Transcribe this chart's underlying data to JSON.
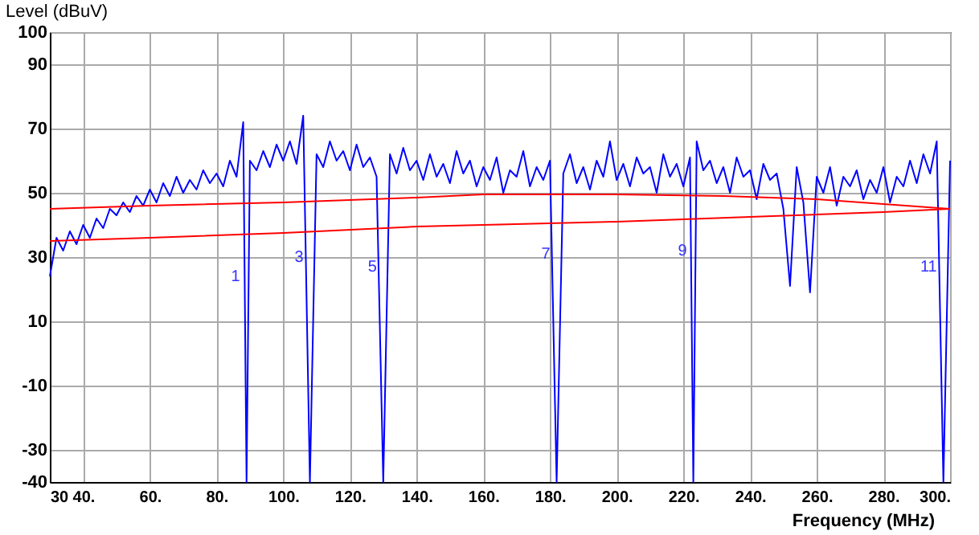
{
  "chart_data": {
    "type": "line",
    "xlabel": "Frequency (MHz)",
    "ylabel": "Level (dBuV)",
    "xlim": [
      30,
      300
    ],
    "ylim": [
      -40,
      100
    ],
    "xticks": [
      30,
      {
        "value": 40,
        "label": "40."
      },
      {
        "value": 60,
        "label": "60."
      },
      {
        "value": 80,
        "label": "80."
      },
      {
        "value": 100,
        "label": "100."
      },
      {
        "value": 120,
        "label": "120."
      },
      {
        "value": 140,
        "label": "140."
      },
      {
        "value": 160,
        "label": "160."
      },
      {
        "value": 180,
        "label": "180."
      },
      {
        "value": 200,
        "label": "200."
      },
      {
        "value": 220,
        "label": "220."
      },
      {
        "value": 240,
        "label": "240."
      },
      {
        "value": 260,
        "label": "260."
      },
      {
        "value": 280,
        "label": "280."
      },
      {
        "value": 300,
        "label": "300."
      }
    ],
    "yticks": [
      -40,
      -30,
      -10,
      10,
      30,
      50,
      70,
      90,
      100
    ],
    "grid": true,
    "series": [
      {
        "color": "#0000ff",
        "x": [
          30,
          32,
          34,
          36,
          38,
          40,
          42,
          44,
          46,
          48,
          50,
          52,
          54,
          56,
          58,
          60,
          62,
          64,
          66,
          68,
          70,
          72,
          74,
          76,
          78,
          80,
          82,
          84,
          86,
          88,
          89,
          90,
          92,
          94,
          96,
          98,
          100,
          102,
          104,
          106,
          108,
          110,
          112,
          114,
          116,
          118,
          120,
          122,
          124,
          126,
          128,
          130,
          132,
          134,
          136,
          138,
          140,
          142,
          144,
          146,
          148,
          150,
          152,
          154,
          156,
          158,
          160,
          162,
          164,
          166,
          168,
          170,
          172,
          174,
          176,
          178,
          180,
          182,
          184,
          186,
          188,
          190,
          192,
          194,
          196,
          198,
          200,
          202,
          204,
          206,
          208,
          210,
          212,
          214,
          216,
          218,
          220,
          222,
          223,
          224,
          226,
          228,
          230,
          232,
          234,
          236,
          238,
          240,
          242,
          244,
          246,
          248,
          250,
          252,
          254,
          256,
          258,
          260,
          262,
          264,
          266,
          268,
          270,
          272,
          274,
          276,
          278,
          280,
          282,
          284,
          286,
          288,
          290,
          292,
          294,
          296,
          298,
          300
        ],
        "values": [
          24,
          36,
          32,
          38,
          34,
          40,
          36,
          42,
          39,
          45,
          43,
          47,
          44,
          49,
          46,
          51,
          47,
          53,
          49,
          55,
          50,
          54,
          51,
          57,
          53,
          56,
          52,
          60,
          55,
          72,
          -40,
          60,
          57,
          63,
          58,
          65,
          60,
          66,
          59,
          74,
          -40,
          62,
          58,
          66,
          60,
          63,
          57,
          65,
          58,
          61,
          55,
          -40,
          62,
          56,
          64,
          57,
          60,
          54,
          62,
          55,
          59,
          53,
          63,
          56,
          60,
          52,
          58,
          54,
          61,
          50,
          57,
          55,
          63,
          52,
          58,
          54,
          60,
          -40,
          56,
          62,
          53,
          58,
          51,
          60,
          55,
          66,
          54,
          59,
          52,
          61,
          56,
          58,
          50,
          62,
          55,
          59,
          52,
          61,
          -40,
          66,
          57,
          60,
          53,
          58,
          50,
          61,
          55,
          57,
          48,
          59,
          54,
          56,
          45,
          21,
          58,
          47,
          19,
          55,
          50,
          58,
          46,
          55,
          52,
          57,
          48,
          54,
          50,
          58,
          47,
          55,
          52,
          60,
          53,
          62,
          56,
          66,
          -40,
          60
        ]
      },
      {
        "color": "#ff0000",
        "x": [
          30,
          60,
          100,
          140,
          160,
          200,
          232,
          260,
          300
        ],
        "values": [
          45,
          46,
          47,
          48.5,
          49.5,
          49.5,
          49,
          48,
          45
        ]
      },
      {
        "color": "#ff0000",
        "x": [
          30,
          60,
          100,
          140,
          160,
          200,
          240,
          280,
          300
        ],
        "values": [
          35,
          36,
          37.5,
          39.5,
          40,
          41,
          42.5,
          44,
          45
        ]
      }
    ],
    "annotations": [
      {
        "text": "1",
        "x": 89,
        "y": 24
      },
      {
        "text": "3",
        "x": 108,
        "y": 30
      },
      {
        "text": "5",
        "x": 130,
        "y": 27
      },
      {
        "text": "7",
        "x": 182,
        "y": 31
      },
      {
        "text": "9",
        "x": 223,
        "y": 32
      },
      {
        "text": "11",
        "x": 298,
        "y": 27
      }
    ]
  }
}
